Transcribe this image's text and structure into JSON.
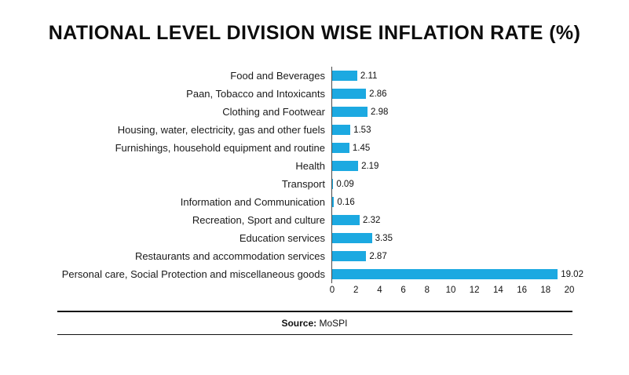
{
  "title": "NATIONAL LEVEL DIVISION WISE INFLATION RATE (%)",
  "source": {
    "label": "Source:",
    "value": "MoSPI"
  },
  "chart_data": {
    "type": "bar",
    "orientation": "horizontal",
    "title": "NATIONAL LEVEL DIVISION WISE INFLATION RATE (%)",
    "categories": [
      "Food and Beverages",
      "Paan, Tobacco and Intoxicants",
      "Clothing and Footwear",
      "Housing, water, electricity, gas and other fuels",
      "Furnishings, household equipment and routine",
      "Health",
      "Transport",
      "Information and Communication",
      "Recreation, Sport and culture",
      "Education services",
      "Restaurants and accommodation services",
      "Personal care, Social Protection and miscellaneous goods"
    ],
    "values": [
      2.11,
      2.86,
      2.98,
      1.53,
      1.45,
      2.19,
      0.09,
      0.16,
      2.32,
      3.35,
      2.87,
      19.02
    ],
    "value_labels": [
      "2.11",
      "2.86",
      "2.98",
      "1.53",
      "1.45",
      "2.19",
      "0.09",
      "0.16",
      "2.32",
      "3.35",
      "2.87",
      "19.02"
    ],
    "xlim": [
      0,
      20
    ],
    "x_ticks": [
      0,
      2,
      4,
      6,
      8,
      10,
      12,
      14,
      16,
      18,
      20
    ],
    "bar_color": "#1CA9E1",
    "grid": false,
    "legend": false,
    "xlabel": "",
    "ylabel": ""
  }
}
